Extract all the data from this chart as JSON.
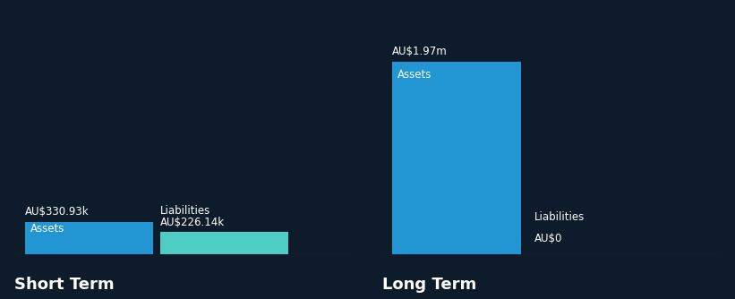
{
  "background_color": "#0d1b2a",
  "asset_color": "#2196d3",
  "liability_color": "#4ecdc4",
  "text_color": "#ffffff",
  "label_fontsize": 8.5,
  "section_label_fontsize": 13,
  "value_label_fontsize": 8.5,
  "bar_inner_fontsize": 8.5,
  "sections": [
    {
      "name": "Short Term",
      "assets_value": 330930,
      "assets_label": "AU$330.93k",
      "liabilities_value": 226140,
      "liabilities_label": "AU$226.14k"
    },
    {
      "name": "Long Term",
      "assets_value": 1970000,
      "assets_label": "AU$1.97m",
      "liabilities_value": 0,
      "liabilities_label": "AU$0"
    }
  ]
}
